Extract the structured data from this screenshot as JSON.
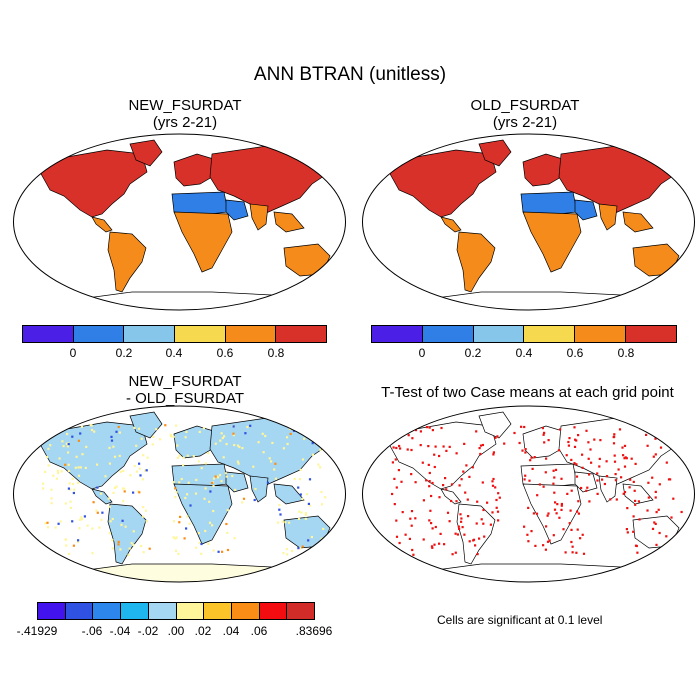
{
  "title": "ANN BTRAN (unitless)",
  "panels": [
    {
      "title_line1": "NEW_FSURDAT",
      "title_line2": "(yrs 2-21)"
    },
    {
      "title_line1": "OLD_FSURDAT",
      "title_line2": "(yrs 2-21)"
    },
    {
      "title_line1": "NEW_FSURDAT",
      "title_line2": "- OLD_FSURDAT"
    },
    {
      "title_line1": "T-Test of two Case means at each grid point",
      "title_line2": ""
    }
  ],
  "colorbar_top": {
    "colors": [
      "#4b1fe6",
      "#2f7fe6",
      "#86c6ea",
      "#f6d94e",
      "#f58b1b",
      "#d8312a"
    ],
    "labels": [
      "0",
      "0.2",
      "0.4",
      "0.6",
      "0.8"
    ]
  },
  "colorbar_diff": {
    "colors": [
      "#4313ee",
      "#2f52e2",
      "#2d86ec",
      "#1fb6f0",
      "#a5d6f2",
      "#fff59a",
      "#fbc52a",
      "#f98d16",
      "#f40d10",
      "#d12c27"
    ],
    "labels": [
      "-.41929",
      "-.06",
      "-.04",
      "-.02",
      ".00",
      ".02",
      ".04",
      ".06",
      ".83696"
    ]
  },
  "ttest_note": "Cells are significant at 0.1 level",
  "colors": {
    "ocean": "#ffffff",
    "btran_high": "#d8312a",
    "btran_midhigh": "#f58b1b",
    "btran_desert": "#2f7fe6",
    "diff_base": "#a5d6f2",
    "diff_pos": "#fff59a",
    "ttest": "#ee1111",
    "coast": "#000000"
  }
}
